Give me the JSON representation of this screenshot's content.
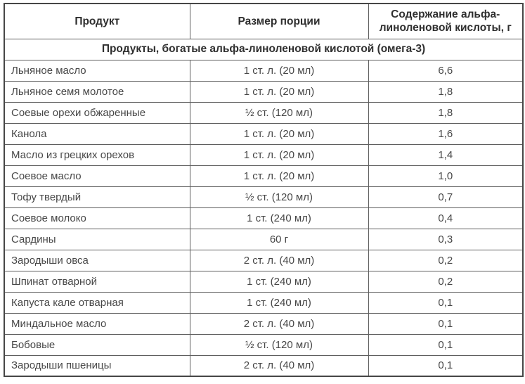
{
  "table": {
    "columns": [
      {
        "label": "Продукт"
      },
      {
        "label": "Размер порции"
      },
      {
        "label": "Содержание альфа-линоленовой кислоты, г"
      }
    ],
    "section_title": "Продукты, богатые альфа-линоленовой кислотой (омега-3)",
    "rows": [
      {
        "product": "Льняное масло",
        "portion": "1 ст. л. (20 мл)",
        "amount": "6,6"
      },
      {
        "product": "Льняное семя молотое",
        "portion": "1 ст. л. (20 мл)",
        "amount": "1,8"
      },
      {
        "product": "Соевые орехи обжаренные",
        "portion": "½ ст. (120 мл)",
        "amount": "1,8"
      },
      {
        "product": "Канола",
        "portion": "1 ст. л. (20 мл)",
        "amount": "1,6"
      },
      {
        "product": "Масло из грецких орехов",
        "portion": "1 ст. л. (20 мл)",
        "amount": "1,4"
      },
      {
        "product": "Соевое масло",
        "portion": "1 ст. л. (20 мл)",
        "amount": "1,0"
      },
      {
        "product": "Тофу твердый",
        "portion": "½ ст. (120 мл)",
        "amount": "0,7"
      },
      {
        "product": "Соевое молоко",
        "portion": "1 ст. (240 мл)",
        "amount": "0,4"
      },
      {
        "product": "Сардины",
        "portion": "60 г",
        "amount": "0,3"
      },
      {
        "product": "Зародыши овса",
        "portion": "2 ст. л. (40 мл)",
        "amount": "0,2"
      },
      {
        "product": "Шпинат отварной",
        "portion": "1 ст. (240 мл)",
        "amount": "0,2"
      },
      {
        "product": "Капуста кале отварная",
        "portion": "1 ст. (240 мл)",
        "amount": "0,1"
      },
      {
        "product": "Миндальное масло",
        "portion": "2 ст. л. (40 мл)",
        "amount": "0,1"
      },
      {
        "product": "Бобовые",
        "portion": "½ ст. (120 мл)",
        "amount": "0,1"
      },
      {
        "product": "Зародыши пшеницы",
        "portion": "2 ст. л. (40 мл)",
        "amount": "0,1"
      }
    ],
    "colors": {
      "border_outer": "#464646",
      "border_inner": "#5e5e5e",
      "header_text": "#2f2f2f",
      "body_text": "#474747",
      "background": "#ffffff"
    }
  }
}
